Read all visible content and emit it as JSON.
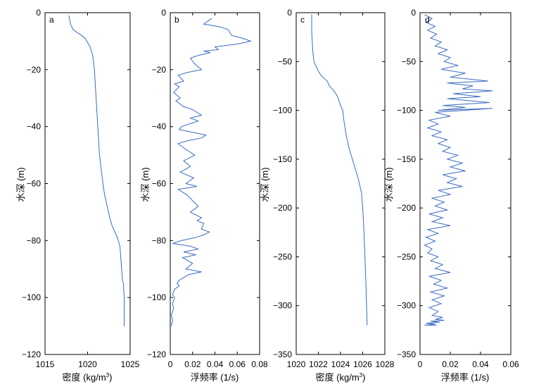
{
  "chart_data": [
    {
      "type": "line",
      "panel_label": "a",
      "xlabel_main": "密度 (kg/m",
      "xlabel_sup": "3",
      "xlabel_tail": ")",
      "ylabel": "水深 (m)",
      "xlim": [
        1015,
        1025
      ],
      "ylim": [
        -120,
        0
      ],
      "xticks": [
        "1015",
        "1020",
        "1025"
      ],
      "yticks": [
        "0",
        "−20",
        "−40",
        "−60",
        "−80",
        "−100",
        "−120"
      ],
      "grid": false,
      "line_color": "#3a6cc0",
      "x": [
        1017.8,
        1018.0,
        1018.3,
        1018.8,
        1019.3,
        1019.7,
        1019.9,
        1020.3,
        1020.6,
        1020.8,
        1020.9,
        1021.0,
        1021.1,
        1021.2,
        1021.3,
        1021.4,
        1021.6,
        1021.8,
        1022.0,
        1022.3,
        1022.6,
        1022.9,
        1023.2,
        1023.5,
        1023.8,
        1023.9,
        1024.0,
        1024.1,
        1024.2,
        1024.3,
        1024.3,
        1024.3
      ],
      "y": [
        -1,
        -4,
        -6,
        -7,
        -8,
        -9,
        -10,
        -12,
        -15,
        -20,
        -25,
        -30,
        -35,
        -40,
        -45,
        -50,
        -55,
        -60,
        -64,
        -68,
        -72,
        -75,
        -77,
        -79,
        -82,
        -86,
        -90,
        -94,
        -95,
        -100,
        -105,
        -110
      ]
    },
    {
      "type": "line",
      "panel_label": "b",
      "xlabel": "浮频率 (1/s)",
      "xlim": [
        0,
        0.08
      ],
      "ylim": [
        -120,
        0
      ],
      "xticks": [
        "0",
        "0.02",
        "0.04",
        "0.06",
        "0.08"
      ],
      "yticks": [
        "0",
        "−20",
        "−40",
        "−60",
        "−80",
        "−100",
        "−120"
      ],
      "grid": false,
      "line_color": "#3a6cc0",
      "x": [
        0.037,
        0.03,
        0.045,
        0.052,
        0.055,
        0.065,
        0.072,
        0.06,
        0.04,
        0.043,
        0.03,
        0.036,
        0.025,
        0.018,
        0.022,
        0.028,
        0.015,
        0.007,
        0.012,
        0.004,
        0.008,
        0.003,
        0.009,
        0.005,
        0.012,
        0.02,
        0.028,
        0.018,
        0.025,
        0.01,
        0.008,
        0.02,
        0.032,
        0.028,
        0.015,
        0.007,
        0.014,
        0.022,
        0.012,
        0.018,
        0.009,
        0.021,
        0.014,
        0.024,
        0.007,
        0.015,
        0.02,
        0.025,
        0.018,
        0.028,
        0.024,
        0.03,
        0.028,
        0.035,
        0.03,
        0.022,
        0.01,
        0.002,
        0.018,
        0.025,
        0.012,
        0.023,
        0.011,
        0.02,
        0.014,
        0.028,
        0.016,
        0.008,
        0.006,
        0.008,
        0.004,
        0.003,
        0.002,
        0.004,
        0.002,
        0.003,
        0.001,
        0.002,
        0.001
      ],
      "y": [
        -2,
        -4,
        -5,
        -6,
        -8,
        -9,
        -10,
        -11,
        -12,
        -13,
        -13.5,
        -14,
        -15,
        -16,
        -18,
        -20,
        -21,
        -22,
        -24,
        -25,
        -26,
        -28,
        -30,
        -31,
        -33,
        -34,
        -36,
        -37,
        -38,
        -40,
        -41,
        -42,
        -43,
        -44,
        -45,
        -46,
        -48,
        -50,
        -52,
        -54,
        -56,
        -58,
        -60,
        -61,
        -62,
        -64,
        -66,
        -68,
        -70,
        -72,
        -73,
        -74,
        -76,
        -77,
        -78,
        -79,
        -80,
        -81,
        -82,
        -83,
        -84,
        -85,
        -86,
        -88,
        -90,
        -91,
        -92,
        -94,
        -95,
        -96,
        -97,
        -98,
        -99,
        -100,
        -102,
        -104,
        -106,
        -108,
        -110
      ]
    },
    {
      "type": "line",
      "panel_label": "c",
      "xlabel_main": "密度 (kg/m",
      "xlabel_sup": "3",
      "xlabel_tail": ")",
      "ylabel": "水深 (m)",
      "xlim": [
        1020,
        1028
      ],
      "ylim": [
        -350,
        0
      ],
      "xticks": [
        "1020",
        "1022",
        "1024",
        "1026",
        "1028"
      ],
      "yticks": [
        "0",
        "−50",
        "−100",
        "−150",
        "−200",
        "−250",
        "−300",
        "−350"
      ],
      "grid": false,
      "line_color": "#3a6cc0",
      "x": [
        1021.4,
        1021.4,
        1021.5,
        1021.6,
        1021.8,
        1022.0,
        1022.3,
        1022.8,
        1023.0,
        1023.4,
        1023.7,
        1024.0,
        1024.2,
        1024.3,
        1024.5,
        1024.8,
        1025.2,
        1025.6,
        1025.9,
        1026.0,
        1026.1,
        1026.2,
        1026.3,
        1026.4
      ],
      "y": [
        -2,
        -20,
        -40,
        -50,
        -55,
        -60,
        -65,
        -70,
        -75,
        -80,
        -85,
        -95,
        -100,
        -110,
        -125,
        -140,
        -155,
        -170,
        -185,
        -200,
        -220,
        -250,
        -280,
        -320
      ]
    },
    {
      "type": "line",
      "panel_label": "d",
      "xlabel": "浮频率 (1/s)",
      "xlim": [
        0,
        0.06
      ],
      "ylim": [
        -350,
        0
      ],
      "xticks": [
        "0",
        "0.02",
        "0.04",
        "0.06"
      ],
      "yticks": [
        "0",
        "−50",
        "−100",
        "−150",
        "−200",
        "−250",
        "−300",
        "−350"
      ],
      "grid": false,
      "line_color": "#3a6cc0",
      "x": [
        0.003,
        0.008,
        0.004,
        0.01,
        0.005,
        0.011,
        0.007,
        0.014,
        0.01,
        0.018,
        0.012,
        0.02,
        0.016,
        0.025,
        0.014,
        0.03,
        0.02,
        0.045,
        0.018,
        0.035,
        0.028,
        0.048,
        0.022,
        0.04,
        0.018,
        0.046,
        0.015,
        0.03,
        0.012,
        0.048,
        0.01,
        0.02,
        0.006,
        0.012,
        0.005,
        0.014,
        0.008,
        0.018,
        0.012,
        0.02,
        0.015,
        0.025,
        0.018,
        0.028,
        0.02,
        0.03,
        0.015,
        0.024,
        0.018,
        0.028,
        0.012,
        0.02,
        0.008,
        0.016,
        0.01,
        0.018,
        0.006,
        0.015,
        0.008,
        0.02,
        0.005,
        0.012,
        0.004,
        0.01,
        0.003,
        0.008,
        0.005,
        0.012,
        0.007,
        0.015,
        0.01,
        0.02,
        0.006,
        0.014,
        0.009,
        0.018,
        0.007,
        0.016,
        0.008,
        0.014,
        0.006,
        0.012,
        0.008,
        0.015,
        0.01,
        0.016,
        0.007,
        0.013,
        0.004,
        0.01,
        0.003,
        0.007,
        0.005,
        0.011
      ],
      "y": [
        -2,
        -6,
        -10,
        -14,
        -18,
        -22,
        -26,
        -30,
        -34,
        -38,
        -42,
        -46,
        -50,
        -54,
        -58,
        -62,
        -66,
        -70,
        -72,
        -75,
        -78,
        -80,
        -83,
        -86,
        -88,
        -92,
        -95,
        -97,
        -100,
        -98,
        -102,
        -106,
        -110,
        -114,
        -118,
        -122,
        -126,
        -130,
        -134,
        -138,
        -142,
        -146,
        -150,
        -154,
        -158,
        -162,
        -166,
        -170,
        -174,
        -178,
        -182,
        -186,
        -190,
        -194,
        -198,
        -202,
        -206,
        -210,
        -214,
        -218,
        -222,
        -226,
        -230,
        -234,
        -238,
        -242,
        -246,
        -250,
        -254,
        -258,
        -262,
        -266,
        -270,
        -274,
        -278,
        -282,
        -286,
        -290,
        -294,
        -298,
        -302,
        -306,
        -310,
        -312,
        -314,
        -315,
        -316,
        -317,
        -318,
        -319,
        -320,
        -320,
        -320,
        -320
      ]
    }
  ]
}
